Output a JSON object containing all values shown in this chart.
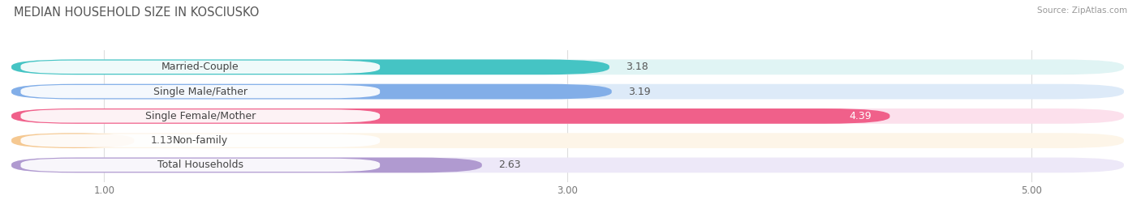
{
  "title": "MEDIAN HOUSEHOLD SIZE IN KOSCIUSKO",
  "source": "Source: ZipAtlas.com",
  "categories": [
    "Married-Couple",
    "Single Male/Father",
    "Single Female/Mother",
    "Non-family",
    "Total Households"
  ],
  "values": [
    3.18,
    3.19,
    4.39,
    1.13,
    2.63
  ],
  "bar_colors": [
    "#45c4c4",
    "#82aee8",
    "#f0608a",
    "#f5c891",
    "#b09ad0"
  ],
  "bar_bg_colors": [
    "#e0f4f4",
    "#ddeaf8",
    "#fce0ec",
    "#fdf5e8",
    "#ede8f8"
  ],
  "value_colors": [
    "#555555",
    "#555555",
    "#ffffff",
    "#555555",
    "#555555"
  ],
  "xlim_left": 0.6,
  "xlim_right": 5.4,
  "xticks": [
    1.0,
    3.0,
    5.0
  ],
  "bar_height": 0.62,
  "value_fontsize": 9,
  "label_fontsize": 9,
  "title_fontsize": 10.5,
  "background_color": "#ffffff",
  "grid_color": "#dddddd"
}
